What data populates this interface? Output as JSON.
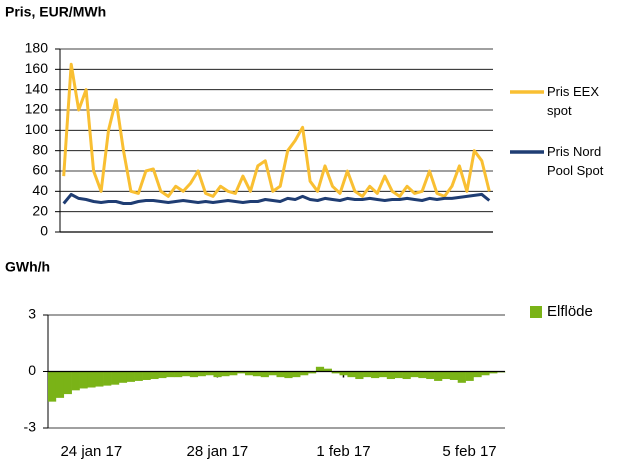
{
  "chart_data": [
    {
      "type": "line",
      "title": "Pris, EUR/MWh",
      "categories": [
        null,
        null,
        null,
        null,
        null,
        null,
        null,
        null,
        null,
        null,
        null,
        null,
        null,
        null,
        null,
        null,
        null,
        null,
        null,
        null,
        null,
        null,
        null,
        null,
        null,
        null,
        null,
        null,
        null,
        null,
        null,
        null,
        null,
        null,
        null,
        null,
        null,
        null,
        null,
        null,
        null,
        null,
        null,
        null,
        null,
        null,
        null,
        null,
        null,
        null,
        null,
        null,
        null,
        null,
        null,
        null,
        null,
        null
      ],
      "series": [
        {
          "name": "Pris EEX spot",
          "color": "#f9bf32",
          "values": [
            55,
            165,
            120,
            140,
            60,
            40,
            100,
            130,
            80,
            40,
            38,
            60,
            62,
            40,
            35,
            45,
            40,
            48,
            60,
            38,
            35,
            45,
            40,
            38,
            55,
            40,
            65,
            70,
            40,
            45,
            80,
            90,
            103,
            50,
            40,
            65,
            45,
            38,
            60,
            40,
            35,
            45,
            38,
            55,
            40,
            35,
            45,
            38,
            40,
            60,
            38,
            35,
            45,
            65,
            40,
            80,
            70,
            40
          ]
        },
        {
          "name": "Pris Nord Pool Spot",
          "color": "#1f3d73",
          "values": [
            28,
            37,
            33,
            32,
            30,
            29,
            30,
            30,
            28,
            28,
            30,
            31,
            31,
            30,
            29,
            30,
            31,
            30,
            29,
            30,
            29,
            30,
            31,
            30,
            29,
            30,
            30,
            32,
            31,
            30,
            33,
            32,
            35,
            32,
            31,
            33,
            32,
            31,
            33,
            32,
            32,
            33,
            32,
            31,
            32,
            32,
            33,
            32,
            31,
            33,
            32,
            33,
            33,
            34,
            35,
            36,
            37,
            31
          ]
        }
      ],
      "ylim": [
        0,
        180
      ],
      "yticks": [
        0,
        20,
        40,
        60,
        80,
        100,
        120,
        140,
        160,
        180
      ],
      "grid": true,
      "legend": "right"
    },
    {
      "type": "bar",
      "title": "GWh/h",
      "categories": [
        null,
        null,
        null,
        null,
        null,
        "24 jan 17",
        null,
        null,
        null,
        null,
        null,
        null,
        null,
        null,
        null,
        null,
        null,
        null,
        null,
        null,
        null,
        "28 jan 17",
        null,
        null,
        null,
        null,
        null,
        null,
        null,
        null,
        null,
        null,
        null,
        null,
        null,
        null,
        null,
        "1 feb 17",
        null,
        null,
        null,
        null,
        null,
        null,
        null,
        null,
        null,
        null,
        null,
        null,
        null,
        null,
        null,
        "5 feb 17",
        null,
        null,
        null,
        null
      ],
      "series": [
        {
          "name": "Elflöde",
          "color": "#7ab317",
          "values": [
            -1.6,
            -1.4,
            -1.2,
            -1.0,
            -0.9,
            -0.85,
            -0.8,
            -0.75,
            -0.7,
            -0.6,
            -0.55,
            -0.5,
            -0.45,
            -0.4,
            -0.35,
            -0.3,
            -0.3,
            -0.25,
            -0.3,
            -0.25,
            -0.2,
            -0.3,
            -0.25,
            -0.2,
            -0.1,
            -0.2,
            -0.25,
            -0.3,
            -0.2,
            -0.3,
            -0.35,
            -0.3,
            -0.2,
            -0.1,
            0.25,
            0.15,
            -0.1,
            -0.2,
            -0.3,
            -0.4,
            -0.3,
            -0.35,
            -0.3,
            -0.4,
            -0.35,
            -0.4,
            -0.3,
            -0.35,
            -0.4,
            -0.5,
            -0.4,
            -0.45,
            -0.6,
            -0.5,
            -0.3,
            -0.2,
            -0.1,
            -0.05
          ]
        }
      ],
      "ylim": [
        -3,
        3
      ],
      "yticks": [
        -3,
        0,
        3
      ],
      "grid": true,
      "legend": "right"
    }
  ]
}
